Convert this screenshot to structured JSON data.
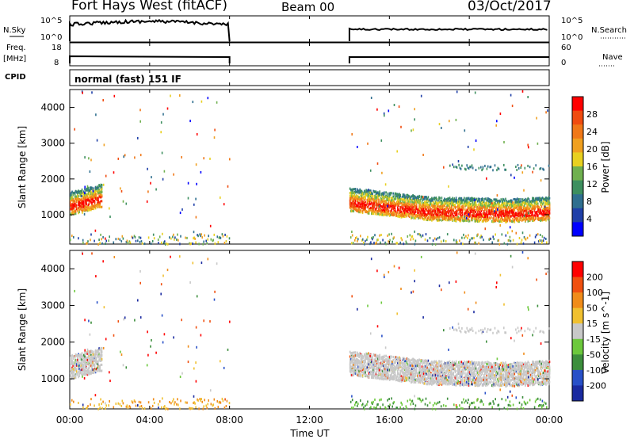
{
  "header": {
    "title": "Fort Hays West (fitACF)",
    "beam": "Beam 00",
    "date": "03/Oct/2017"
  },
  "panels": {
    "sky": {
      "label": "N.Sky",
      "right_label": "N.Search",
      "ticks_left": [
        "10^5",
        "10^0"
      ],
      "ticks_right": [
        "10^5",
        "10^0"
      ]
    },
    "freq": {
      "label_top": "Freq.",
      "label_bottom": "[MHz]",
      "right_label": "Nave",
      "ticks_left": [
        "18",
        "8"
      ],
      "ticks_right": [
        "60",
        "0"
      ]
    },
    "cpid": {
      "label": "CPID",
      "mode": "normal (fast) 151 IF"
    }
  },
  "axes": {
    "xlabel": "Time UT",
    "xticks": [
      "00:00",
      "04:00",
      "08:00",
      "12:00",
      "16:00",
      "20:00",
      "00:00"
    ],
    "ylabel": "Slant Range [km]",
    "yticks": [
      "4000",
      "3000",
      "2000",
      "1000"
    ]
  },
  "chart_data": [
    {
      "type": "heatmap",
      "title": "",
      "xlabel": "Time UT",
      "ylabel": "Slant Range [km]",
      "xlim": [
        0,
        24
      ],
      "ylim": [
        180,
        4500
      ],
      "colorbar": {
        "label": "Power [dB]",
        "ticks": [
          "28",
          "24",
          "20",
          "16",
          "12",
          "8",
          "4"
        ],
        "range": [
          0,
          30
        ]
      },
      "gaps_hours": [
        [
          8,
          14
        ]
      ],
      "scatter_band": {
        "start_hour_range_km": [
          [
            0,
            1250
          ],
          [
            1.5,
            1450
          ],
          [
            14,
            1350
          ],
          [
            18,
            1100
          ],
          [
            22,
            1050
          ],
          [
            24,
            1100
          ]
        ]
      },
      "colors": [
        "#0000ff",
        "#1f3fa8",
        "#2f6f8f",
        "#3d8f5f",
        "#6fb04f",
        "#e8d020",
        "#f0a020",
        "#f07818",
        "#f04c10",
        "#ff0000"
      ]
    },
    {
      "type": "heatmap",
      "title": "",
      "xlabel": "Time UT",
      "ylabel": "Slant Range [km]",
      "xlim": [
        0,
        24
      ],
      "ylim": [
        180,
        4500
      ],
      "colorbar": {
        "label": "Velocity [m s^-1]",
        "ticks": [
          "200",
          "100",
          "50",
          "15",
          "-15",
          "-50",
          "-100",
          "-200"
        ]
      },
      "gaps_hours": [
        [
          8,
          14
        ]
      ],
      "colors": [
        "#1a2aa0",
        "#2850c8",
        "#3c8e3c",
        "#6cc83c",
        "#c8c8c8",
        "#f0c030",
        "#f08c1a",
        "#f05010",
        "#ff0000"
      ]
    }
  ]
}
